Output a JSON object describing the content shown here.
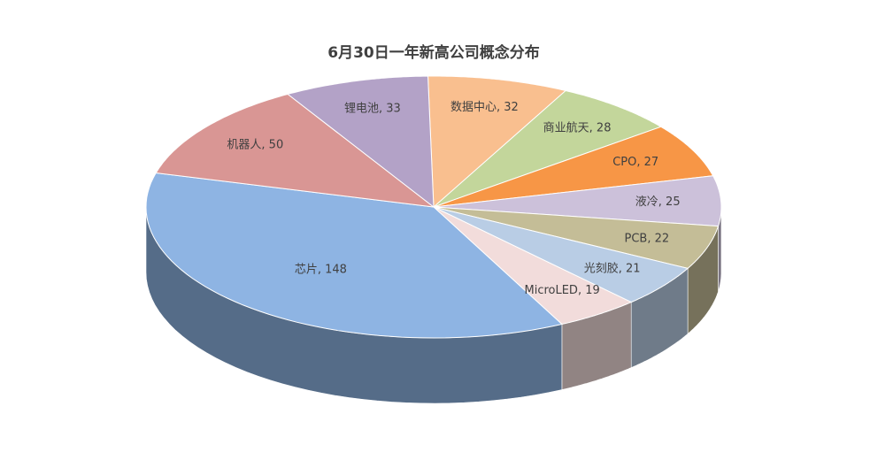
{
  "chart_data": {
    "type": "pie3d",
    "title": "6月30日一年新高公司概念分布",
    "values": [
      32,
      28,
      27,
      25,
      22,
      21,
      19,
      148,
      50,
      33
    ],
    "value_labels": [
      "数据中心, 32",
      "商业航天, 28",
      "CPO, 27",
      "液冷, 25",
      "PCB, 22",
      "光刻胶, 21",
      "MicroLED, 19",
      "芯片, 148",
      "机器人, 50",
      "锂电池, 33"
    ],
    "colors": [
      "#f9bf8f",
      "#c3d69b",
      "#f79646",
      "#ccc1da",
      "#c4bd97",
      "#b9cde5",
      "#f2dcdb",
      "#8eb4e3",
      "#d99694",
      "#b3a2c7"
    ]
  }
}
